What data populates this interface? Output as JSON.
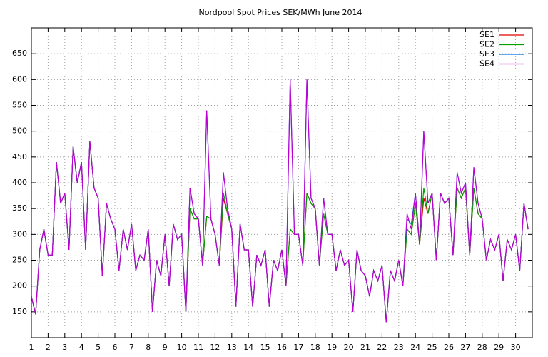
{
  "chart_data": {
    "type": "line",
    "title": "Nordpool Spot Prices SEK/MWh June 2014",
    "x": [
      1,
      1.25,
      1.5,
      1.75,
      2,
      2.25,
      2.5,
      2.75,
      3,
      3.25,
      3.5,
      3.75,
      4,
      4.25,
      4.5,
      4.75,
      5,
      5.25,
      5.5,
      5.75,
      6,
      6.25,
      6.5,
      6.75,
      7,
      7.25,
      7.5,
      7.75,
      8,
      8.25,
      8.5,
      8.75,
      9,
      9.25,
      9.5,
      9.75,
      10,
      10.25,
      10.5,
      10.75,
      11,
      11.25,
      11.5,
      11.75,
      12,
      12.25,
      12.5,
      12.75,
      13,
      13.25,
      13.5,
      13.75,
      14,
      14.25,
      14.5,
      14.75,
      15,
      15.25,
      15.5,
      15.75,
      16,
      16.25,
      16.5,
      16.75,
      17,
      17.25,
      17.5,
      17.75,
      18,
      18.25,
      18.5,
      18.75,
      19,
      19.25,
      19.5,
      19.75,
      20,
      20.25,
      20.5,
      20.75,
      21,
      21.25,
      21.5,
      21.75,
      22,
      22.25,
      22.5,
      22.75,
      23,
      23.25,
      23.5,
      23.75,
      24,
      24.25,
      24.5,
      24.75,
      25,
      25.25,
      25.5,
      25.75,
      26,
      26.25,
      26.5,
      26.75,
      27,
      27.25,
      27.5,
      27.75,
      28,
      28.25,
      28.5,
      28.75,
      29,
      29.25,
      29.5,
      29.75,
      30,
      30.25,
      30.5,
      30.75
    ],
    "series": [
      {
        "name": "SE1",
        "color": "#e00000",
        "values": [
          180,
          145,
          270,
          310,
          260,
          260,
          440,
          360,
          380,
          270,
          470,
          400,
          440,
          270,
          480,
          390,
          370,
          220,
          360,
          330,
          310,
          230,
          310,
          270,
          320,
          230,
          260,
          250,
          310,
          150,
          250,
          220,
          300,
          200,
          320,
          290,
          300,
          150,
          350,
          330,
          330,
          240,
          335,
          330,
          300,
          240,
          370,
          340,
          310,
          160,
          320,
          270,
          270,
          160,
          260,
          240,
          270,
          160,
          250,
          230,
          270,
          200,
          310,
          300,
          300,
          240,
          380,
          360,
          350,
          240,
          340,
          300,
          300,
          230,
          270,
          240,
          250,
          150,
          270,
          230,
          220,
          180,
          230,
          210,
          240,
          130,
          230,
          210,
          250,
          200,
          310,
          300,
          360,
          280,
          370,
          340,
          380,
          250,
          380,
          360,
          370,
          260,
          390,
          370,
          390,
          260,
          390,
          340,
          330,
          250,
          290,
          270,
          300,
          210,
          290,
          270,
          300,
          230,
          360,
          310
        ]
      },
      {
        "name": "SE2",
        "color": "#00a000",
        "values": [
          180,
          145,
          270,
          310,
          260,
          260,
          440,
          360,
          380,
          270,
          470,
          400,
          440,
          270,
          480,
          390,
          370,
          220,
          360,
          330,
          310,
          230,
          310,
          270,
          320,
          230,
          260,
          250,
          310,
          150,
          250,
          220,
          300,
          200,
          320,
          290,
          300,
          150,
          350,
          330,
          330,
          240,
          335,
          330,
          300,
          240,
          380,
          340,
          310,
          160,
          320,
          270,
          270,
          160,
          260,
          240,
          270,
          160,
          250,
          230,
          270,
          200,
          310,
          300,
          300,
          240,
          380,
          360,
          350,
          240,
          340,
          300,
          300,
          230,
          270,
          240,
          250,
          150,
          270,
          230,
          220,
          180,
          230,
          210,
          240,
          130,
          230,
          210,
          250,
          200,
          310,
          300,
          360,
          280,
          390,
          340,
          380,
          250,
          380,
          360,
          370,
          260,
          390,
          370,
          390,
          260,
          390,
          340,
          330,
          250,
          290,
          270,
          300,
          210,
          290,
          270,
          300,
          230,
          360,
          310
        ]
      },
      {
        "name": "SE3",
        "color": "#0070e0",
        "values": [
          180,
          145,
          270,
          310,
          260,
          260,
          440,
          360,
          380,
          270,
          470,
          400,
          440,
          270,
          480,
          390,
          370,
          220,
          360,
          330,
          310,
          230,
          310,
          270,
          320,
          230,
          260,
          250,
          310,
          150,
          250,
          220,
          300,
          200,
          320,
          290,
          300,
          150,
          390,
          340,
          330,
          240,
          540,
          330,
          300,
          240,
          420,
          350,
          310,
          160,
          320,
          270,
          270,
          160,
          260,
          240,
          270,
          160,
          250,
          230,
          270,
          200,
          600,
          300,
          300,
          240,
          600,
          370,
          350,
          240,
          370,
          300,
          300,
          230,
          270,
          240,
          250,
          150,
          270,
          230,
          220,
          180,
          230,
          210,
          240,
          130,
          230,
          210,
          250,
          200,
          330,
          320,
          380,
          280,
          500,
          360,
          380,
          250,
          380,
          360,
          370,
          260,
          420,
          380,
          400,
          260,
          430,
          360,
          330,
          250,
          290,
          270,
          300,
          210,
          290,
          270,
          300,
          230,
          360,
          310
        ]
      },
      {
        "name": "SE4",
        "color": "#c000d0",
        "values": [
          180,
          145,
          270,
          310,
          260,
          260,
          440,
          360,
          380,
          270,
          470,
          400,
          440,
          270,
          480,
          390,
          370,
          220,
          360,
          330,
          310,
          230,
          310,
          270,
          320,
          230,
          260,
          250,
          310,
          150,
          250,
          220,
          300,
          200,
          320,
          290,
          300,
          150,
          390,
          340,
          330,
          240,
          540,
          330,
          300,
          240,
          420,
          350,
          310,
          160,
          320,
          270,
          270,
          160,
          260,
          240,
          270,
          160,
          250,
          230,
          270,
          200,
          600,
          300,
          300,
          240,
          600,
          370,
          350,
          240,
          370,
          300,
          300,
          230,
          270,
          240,
          250,
          150,
          270,
          230,
          220,
          180,
          230,
          210,
          240,
          130,
          230,
          210,
          250,
          200,
          340,
          310,
          380,
          280,
          500,
          360,
          380,
          250,
          380,
          360,
          370,
          260,
          420,
          380,
          400,
          260,
          430,
          360,
          330,
          250,
          290,
          270,
          300,
          210,
          290,
          270,
          300,
          230,
          360,
          310
        ]
      }
    ],
    "xlim": [
      1,
      31
    ],
    "xticks": [
      1,
      2,
      3,
      4,
      5,
      6,
      7,
      8,
      9,
      10,
      11,
      12,
      13,
      14,
      15,
      16,
      17,
      18,
      19,
      20,
      21,
      22,
      23,
      24,
      25,
      26,
      27,
      28,
      29,
      30
    ],
    "ylim": [
      100,
      700
    ],
    "yticks": [
      150,
      200,
      250,
      300,
      350,
      400,
      450,
      500,
      550,
      600,
      650
    ],
    "grid": true,
    "legend": "top-right"
  }
}
